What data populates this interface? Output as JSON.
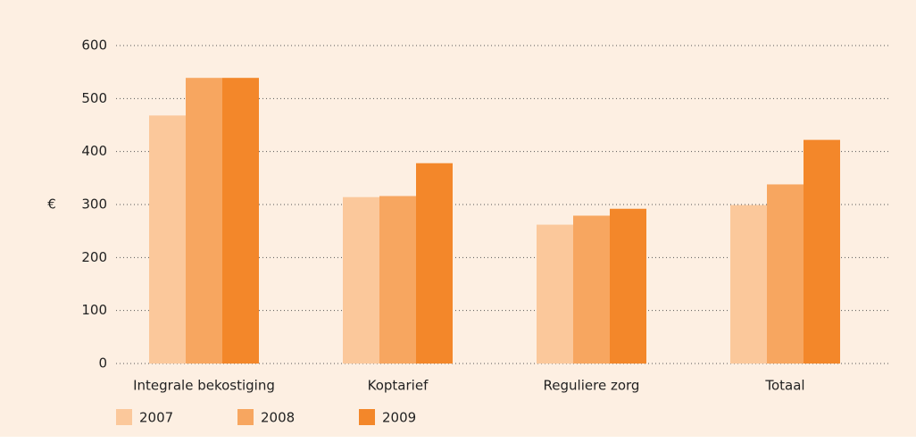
{
  "chart_data": {
    "type": "bar",
    "y_label": "€",
    "categories": [
      "Integrale bekostiging",
      "Koptarief",
      "Reguliere zorg",
      "Totaal"
    ],
    "series": [
      {
        "name": "2007",
        "color": "#fbc89b",
        "values": [
          468,
          314,
          262,
          299
        ]
      },
      {
        "name": "2008",
        "color": "#f7a660",
        "values": [
          539,
          316,
          279,
          338
        ]
      },
      {
        "name": "2009",
        "color": "#f3872a",
        "values": [
          539,
          378,
          292,
          422
        ]
      }
    ],
    "ylim": [
      0,
      600
    ],
    "yticks": [
      0,
      100,
      200,
      300,
      400,
      500,
      600
    ],
    "grid": true,
    "legend": "bottom"
  }
}
